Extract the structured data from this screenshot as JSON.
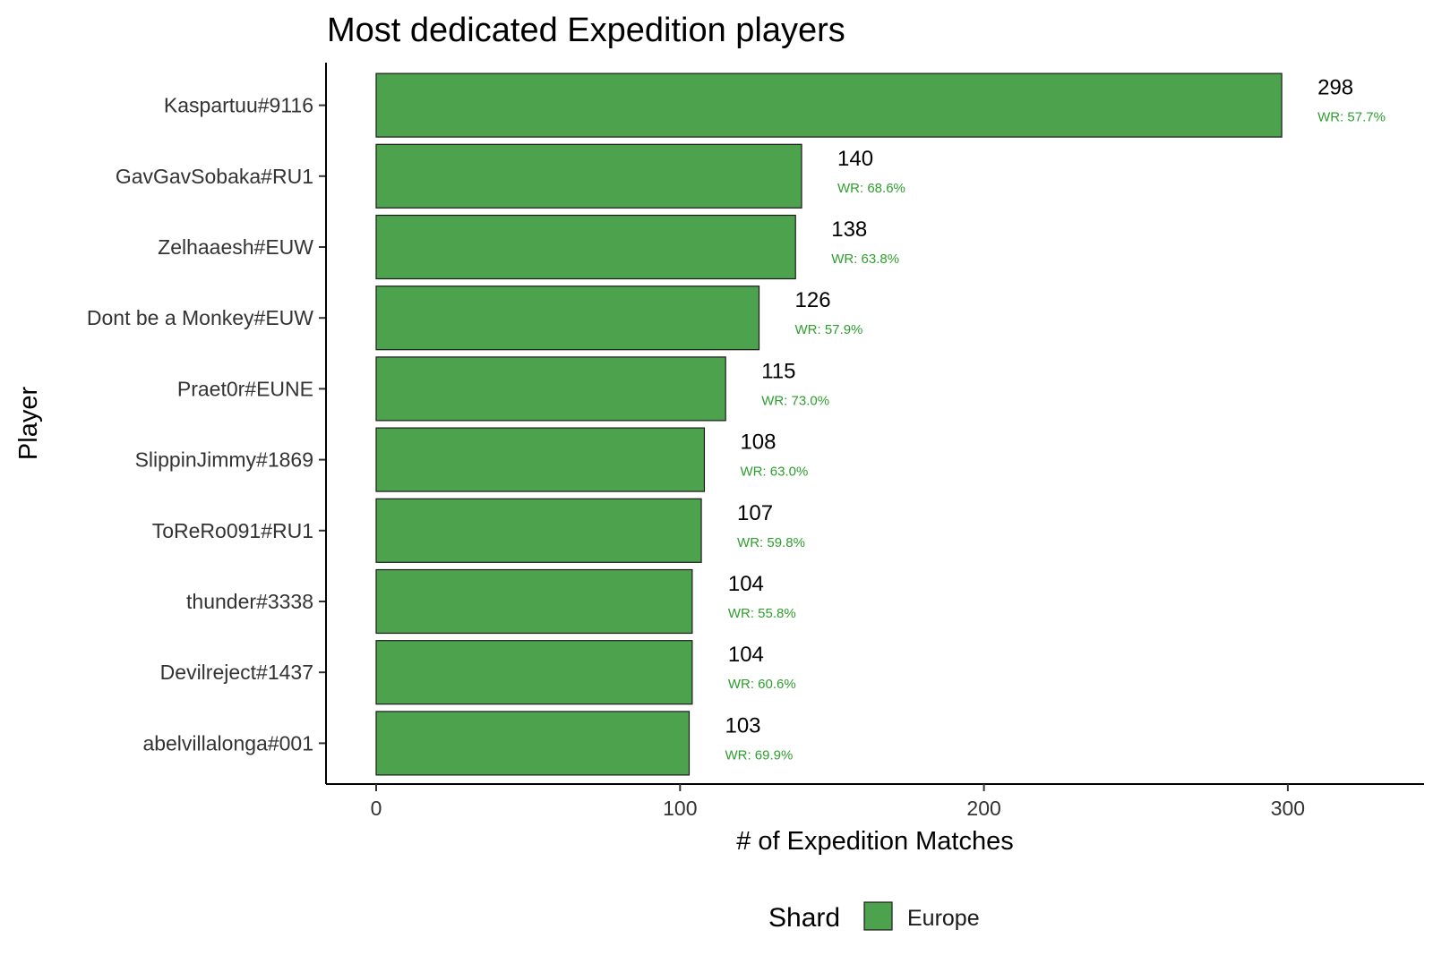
{
  "chart_data": {
    "type": "bar",
    "orientation": "horizontal",
    "title": "Most dedicated Expedition players",
    "xlabel": "# of Expedition Matches",
    "ylabel": "Player",
    "xlim": [
      -16.5,
      346.5
    ],
    "xticks": [
      0,
      100,
      200,
      300
    ],
    "grid": false,
    "categories": [
      "Kaspartuu#9116",
      "GavGavSobaka#RU1",
      "Zelhaaesh#EUW",
      "Dont be a Monkey#EUW",
      "Praet0r#EUNE",
      "SlippinJimmy#1869",
      "ToReRo091#RU1",
      "thunder#3338",
      "Devilreject#1437",
      "abelvillalonga#001"
    ],
    "series": [
      {
        "name": "Europe",
        "color": "#4DA34D",
        "values": [
          298,
          140,
          138,
          126,
          115,
          108,
          107,
          104,
          104,
          103
        ]
      }
    ],
    "value_labels": [
      "298",
      "140",
      "138",
      "126",
      "115",
      "108",
      "107",
      "104",
      "104",
      "103"
    ],
    "win_rate_labels": [
      "WR: 57.7%",
      "WR: 68.6%",
      "WR: 63.8%",
      "WR: 57.9%",
      "WR: 73.0%",
      "WR: 63.0%",
      "WR: 59.8%",
      "WR: 55.8%",
      "WR: 60.6%",
      "WR: 69.9%"
    ],
    "win_rate_color": "#2E9E2E",
    "legend": {
      "title": "Shard",
      "position": "bottom",
      "entries": [
        {
          "label": "Europe",
          "color": "#4DA34D"
        }
      ]
    }
  }
}
